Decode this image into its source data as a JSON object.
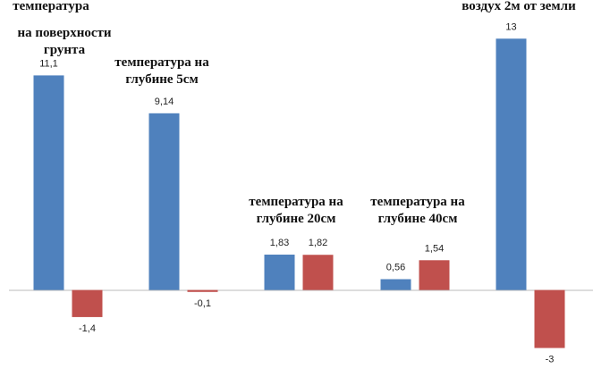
{
  "chart_data": {
    "type": "bar",
    "categories": [
      null,
      null,
      null,
      null,
      null
    ],
    "series": [
      {
        "color": "#4f81bd",
        "values": [
          11.1,
          9.14,
          1.83,
          0.56,
          13
        ],
        "value_labels": [
          "11,1",
          "9,14",
          "1,83",
          "0,56",
          "13"
        ]
      },
      {
        "color": "#c0504d",
        "values": [
          -1.4,
          -0.1,
          1.82,
          1.54,
          -3
        ],
        "value_labels": [
          "-1,4",
          "-0,1",
          "1,82",
          "1,54",
          "-3"
        ]
      }
    ],
    "ylim": [
      -4.5,
      15
    ],
    "annotations": [
      [
        "температура",
        "на поверхности",
        "грунта"
      ],
      [
        "температура на",
        "глубине 5см"
      ],
      [
        "температура на",
        "глубине 20см"
      ],
      [
        "температура на",
        "глубине 40см"
      ],
      [
        "воздух 2м от земли"
      ]
    ]
  }
}
